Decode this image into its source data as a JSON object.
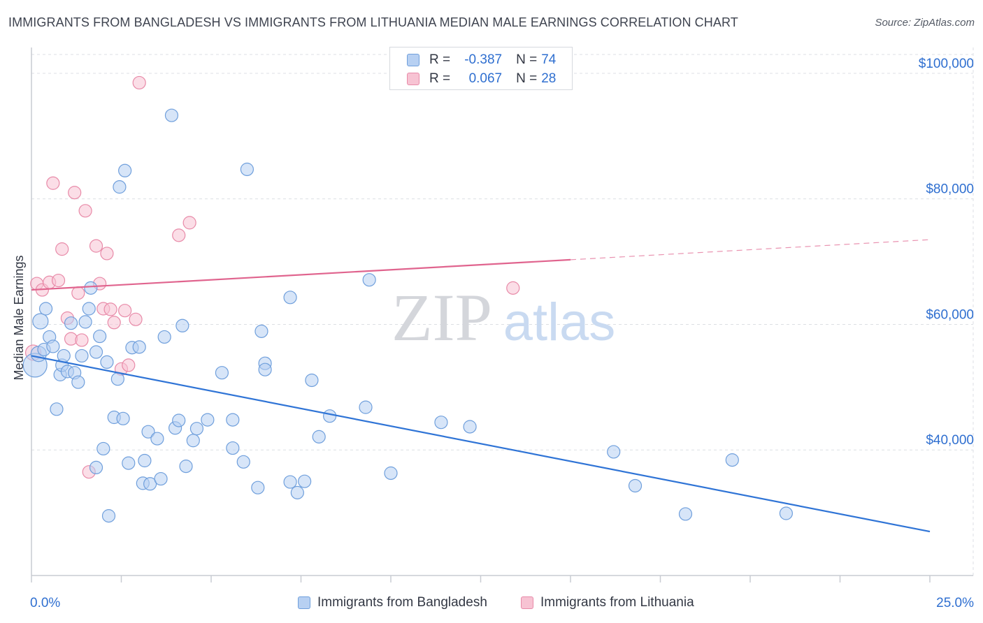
{
  "title": "IMMIGRANTS FROM BANGLADESH VS IMMIGRANTS FROM LITHUANIA MEDIAN MALE EARNINGS CORRELATION CHART",
  "source": "Source: ZipAtlas.com",
  "watermark": {
    "zip": "ZIP",
    "atlas": "atlas"
  },
  "colors": {
    "blue_fill": "#b7d0f2",
    "blue_stroke": "#6f9fdc",
    "blue_line": "#2f74d6",
    "pink_fill": "#f7c3d3",
    "pink_stroke": "#e88aa8",
    "pink_line": "#e0648e",
    "accent_text": "#2f6fd0",
    "grid": "#dcdfe4"
  },
  "legend": {
    "rows": [
      {
        "series": "Immigrants from Bangladesh",
        "r_label": "R =",
        "r_value": "-0.387",
        "n_label": "N =",
        "n_value": "74"
      },
      {
        "series": "Immigrants from Lithuania",
        "r_label": "R =",
        "r_value": "0.067",
        "n_label": "N =",
        "n_value": "28"
      }
    ]
  },
  "bottom_legend": [
    "Immigrants from Bangladesh",
    "Immigrants from Lithuania"
  ],
  "chart_data": {
    "type": "scatter",
    "title": "IMMIGRANTS FROM BANGLADESH VS IMMIGRANTS FROM LITHUANIA MEDIAN MALE EARNINGS CORRELATION CHART",
    "xlabel": "",
    "ylabel": "Median Male Earnings",
    "xlim": [
      0,
      25
    ],
    "ylim": [
      20000,
      103000
    ],
    "x_tick_labels": [
      "0.0%",
      "25.0%"
    ],
    "y_ticks": [
      40000,
      60000,
      80000,
      100000
    ],
    "y_tick_labels": [
      "$40,000",
      "$60,000",
      "$80,000",
      "$100,000"
    ],
    "grid": true,
    "legend_position": "top-center",
    "series": [
      {
        "name": "Immigrants from Bangladesh",
        "color": "#6f9fdc",
        "trend": {
          "x0": 0,
          "y0": 55000,
          "x1": 25,
          "y1": 27000,
          "solid_until": 25
        },
        "points": [
          [
            0.1,
            53500,
            16
          ],
          [
            0.2,
            55300,
            10
          ],
          [
            0.25,
            60500,
            10
          ],
          [
            0.35,
            56000,
            8
          ],
          [
            0.4,
            62500,
            8
          ],
          [
            0.5,
            58000,
            8
          ],
          [
            0.6,
            56500,
            8
          ],
          [
            0.7,
            46500,
            8
          ],
          [
            0.8,
            52000,
            8
          ],
          [
            0.85,
            53500,
            8
          ],
          [
            0.9,
            55000,
            8
          ],
          [
            1.0,
            52500,
            8
          ],
          [
            1.1,
            60200,
            8
          ],
          [
            1.2,
            52300,
            8
          ],
          [
            1.3,
            50800,
            8
          ],
          [
            1.4,
            55000,
            8
          ],
          [
            1.5,
            60400,
            8
          ],
          [
            1.6,
            62500,
            8
          ],
          [
            1.65,
            65800,
            8
          ],
          [
            1.8,
            55600,
            8
          ],
          [
            1.8,
            37200,
            8
          ],
          [
            1.9,
            58100,
            8
          ],
          [
            2.0,
            40200,
            8
          ],
          [
            2.1,
            54000,
            8
          ],
          [
            2.15,
            29500,
            8
          ],
          [
            2.3,
            45200,
            8
          ],
          [
            2.4,
            51300,
            8
          ],
          [
            2.45,
            81900,
            8
          ],
          [
            2.55,
            45000,
            8
          ],
          [
            2.6,
            84500,
            8
          ],
          [
            2.7,
            37900,
            8
          ],
          [
            2.8,
            56300,
            8
          ],
          [
            3.0,
            56400,
            8
          ],
          [
            3.1,
            34700,
            8
          ],
          [
            3.15,
            38300,
            8
          ],
          [
            3.25,
            42900,
            8
          ],
          [
            3.3,
            34600,
            8
          ],
          [
            3.5,
            41800,
            8
          ],
          [
            3.6,
            35400,
            8
          ],
          [
            3.7,
            58000,
            8
          ],
          [
            3.9,
            93300,
            8
          ],
          [
            4.0,
            43500,
            8
          ],
          [
            4.1,
            44700,
            8
          ],
          [
            4.2,
            59800,
            8
          ],
          [
            4.3,
            37400,
            8
          ],
          [
            4.5,
            41500,
            8
          ],
          [
            4.6,
            43400,
            8
          ],
          [
            4.9,
            44800,
            8
          ],
          [
            5.3,
            52300,
            8
          ],
          [
            5.6,
            44800,
            8
          ],
          [
            5.6,
            40300,
            8
          ],
          [
            5.9,
            38100,
            8
          ],
          [
            6.0,
            84700,
            8
          ],
          [
            6.3,
            34000,
            8
          ],
          [
            6.4,
            58900,
            8
          ],
          [
            6.5,
            53800,
            8
          ],
          [
            6.5,
            52800,
            8
          ],
          [
            7.2,
            34900,
            8
          ],
          [
            7.2,
            64300,
            8
          ],
          [
            7.4,
            33200,
            8
          ],
          [
            7.6,
            35000,
            8
          ],
          [
            7.8,
            51100,
            8
          ],
          [
            8.0,
            42100,
            8
          ],
          [
            8.3,
            45400,
            8
          ],
          [
            9.3,
            46800,
            8
          ],
          [
            9.4,
            67100,
            8
          ],
          [
            10.0,
            36300,
            8
          ],
          [
            11.4,
            44400,
            8
          ],
          [
            12.2,
            43700,
            8
          ],
          [
            16.2,
            39700,
            8
          ],
          [
            16.8,
            34300,
            8
          ],
          [
            18.2,
            29800,
            8
          ],
          [
            19.5,
            38400,
            8
          ],
          [
            21.0,
            29900,
            8
          ]
        ]
      },
      {
        "name": "Immigrants from Lithuania",
        "color": "#e88aa8",
        "trend": {
          "x0": 0,
          "y0": 65500,
          "x1": 25,
          "y1": 73500,
          "solid_until": 15
        },
        "points": [
          [
            0.05,
            55500,
            10
          ],
          [
            0.15,
            66500,
            8
          ],
          [
            0.3,
            65500,
            8
          ],
          [
            0.5,
            66700,
            8
          ],
          [
            0.6,
            82500,
            8
          ],
          [
            0.75,
            67000,
            8
          ],
          [
            0.85,
            72000,
            8
          ],
          [
            1.0,
            61000,
            8
          ],
          [
            1.1,
            57700,
            8
          ],
          [
            1.2,
            81000,
            8
          ],
          [
            1.3,
            65000,
            8
          ],
          [
            1.4,
            57500,
            8
          ],
          [
            1.5,
            78100,
            8
          ],
          [
            1.6,
            36500,
            8
          ],
          [
            1.8,
            72500,
            8
          ],
          [
            1.9,
            66500,
            8
          ],
          [
            2.0,
            62500,
            8
          ],
          [
            2.1,
            71300,
            8
          ],
          [
            2.3,
            60300,
            8
          ],
          [
            2.5,
            52900,
            8
          ],
          [
            2.6,
            62200,
            8
          ],
          [
            2.7,
            53500,
            8
          ],
          [
            2.9,
            60800,
            8
          ],
          [
            3.0,
            98500,
            8
          ],
          [
            4.1,
            74200,
            8
          ],
          [
            4.4,
            76200,
            8
          ],
          [
            13.4,
            65800,
            8
          ],
          [
            2.2,
            62400,
            8
          ]
        ]
      }
    ]
  }
}
